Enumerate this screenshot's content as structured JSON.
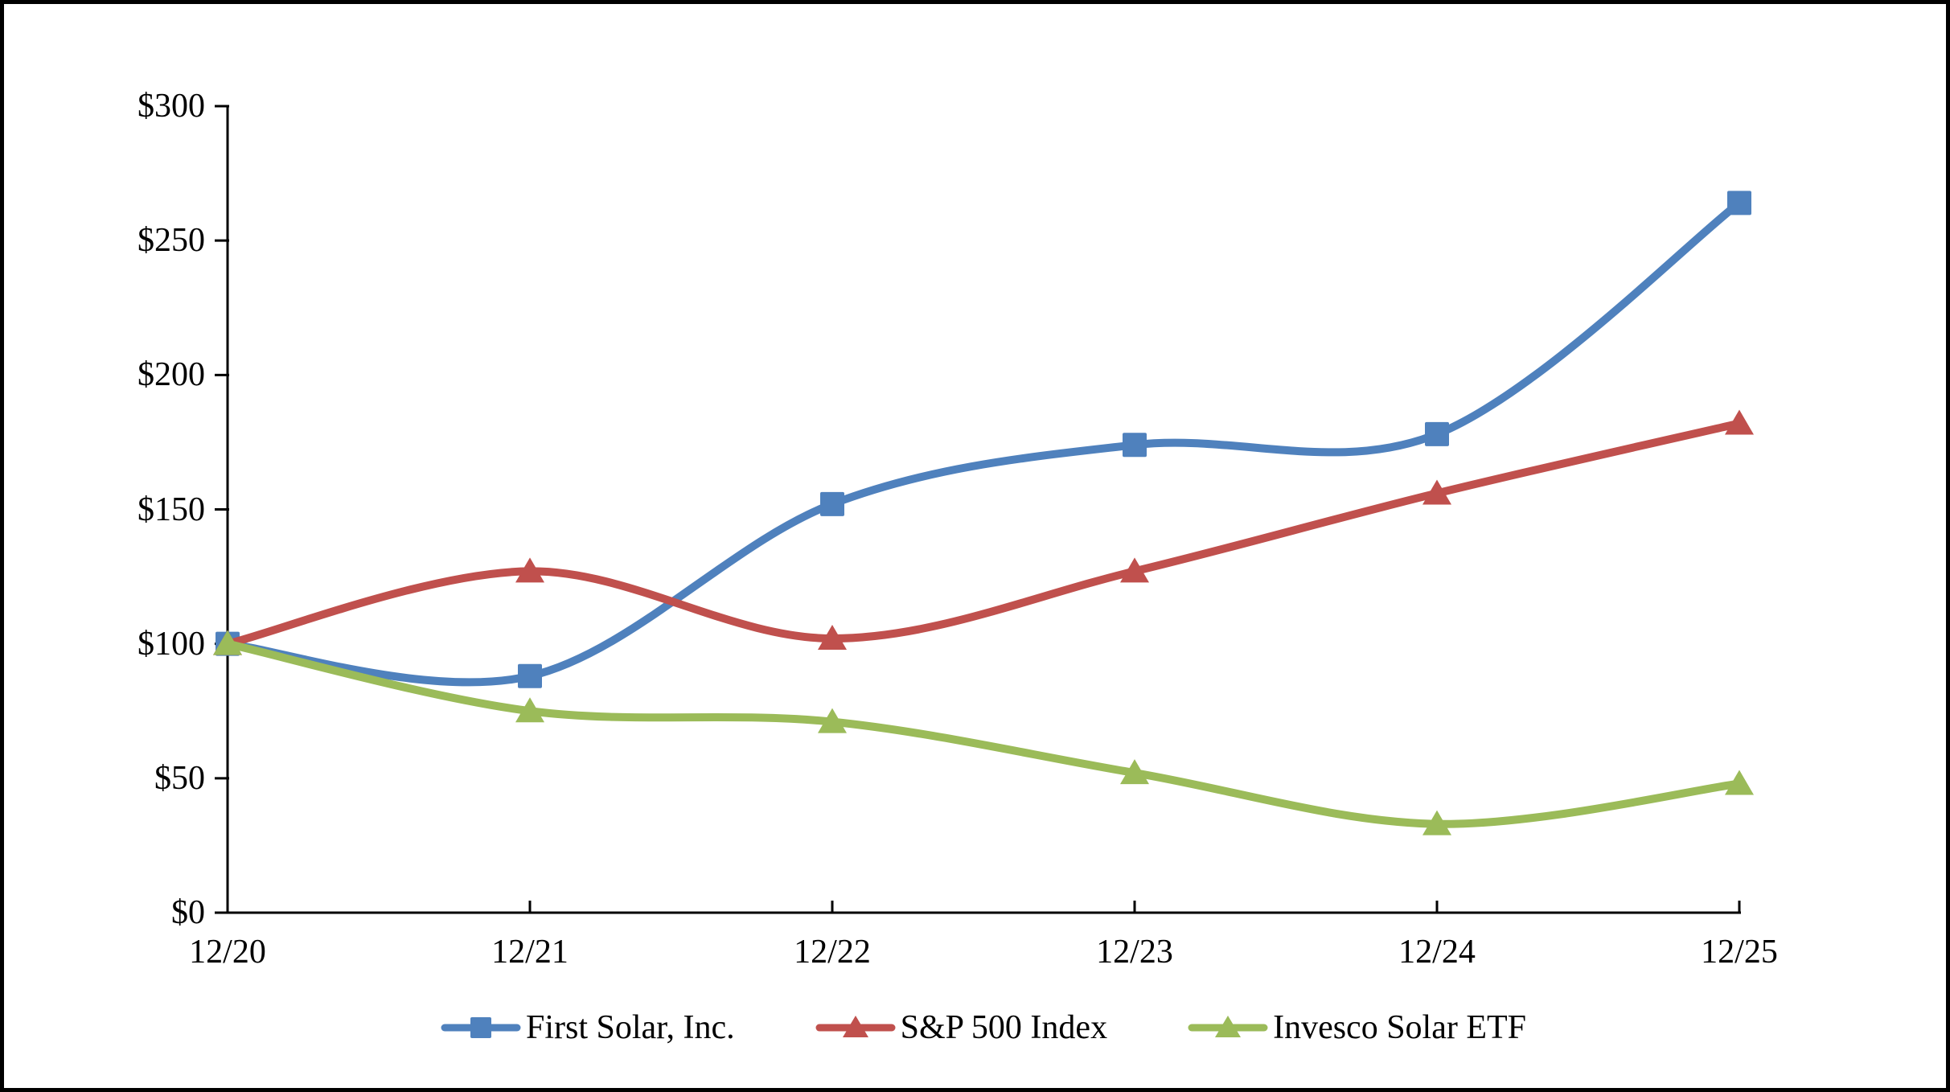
{
  "figure": {
    "background_color": "#ffffff",
    "border_color": "#000000",
    "axis_color": "#000000",
    "text_color": "#000000"
  },
  "chart_data": {
    "type": "line",
    "title": "",
    "x": [
      "12/20",
      "12/21",
      "12/22",
      "12/23",
      "12/24",
      "12/25"
    ],
    "series": [
      {
        "name": "First Solar, Inc.",
        "color": "#4F81BD",
        "marker": "square",
        "values": [
          100,
          88,
          152,
          174,
          178,
          264
        ]
      },
      {
        "name": "S&P 500 Index",
        "color": "#C0504D",
        "marker": "triangle",
        "values": [
          100,
          127,
          102,
          127,
          156,
          182
        ]
      },
      {
        "name": "Invesco Solar ETF",
        "color": "#9BBB59",
        "marker": "triangle",
        "values": [
          100,
          75,
          71,
          52,
          33,
          48
        ]
      }
    ],
    "y_ticks": [
      "$300",
      "$250",
      "$200",
      "$150",
      "$100",
      "$50",
      "$0"
    ],
    "y_tick_values": [
      300,
      250,
      200,
      150,
      100,
      50,
      0
    ],
    "ylim": [
      0,
      300
    ],
    "grid": false,
    "line_style": "smooth",
    "legend_position": "bottom"
  }
}
